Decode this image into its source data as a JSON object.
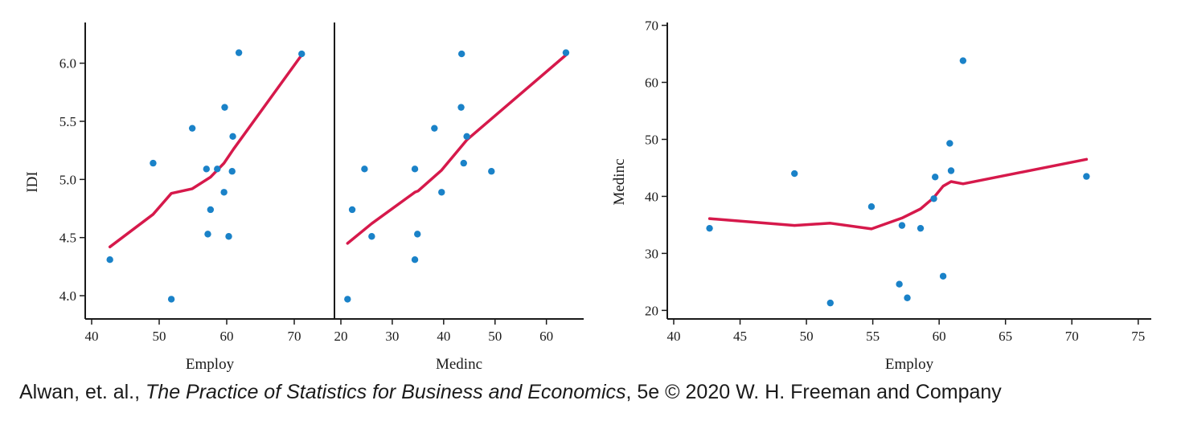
{
  "colors": {
    "point": "#1a82c8",
    "smooth_line": "#d6194b",
    "axis": "#1a1a1a"
  },
  "credit": {
    "prefix": "Alwan, et. al., ",
    "book_title": "The Practice of Statistics for Business and Economics",
    "suffix": ", 5e © 2020 W. H. Freeman and Company"
  },
  "chart_data": [
    {
      "type": "scatter",
      "panel": "left",
      "xlabel": "Employ",
      "ylabel": "IDI",
      "xlim": [
        40,
        75
      ],
      "ylim": [
        3.8,
        6.35
      ],
      "xticks": [
        40,
        50,
        60,
        70
      ],
      "yticks": [
        4.0,
        4.5,
        5.0,
        5.5,
        6.0
      ],
      "points": [
        {
          "x": 42.7,
          "y": 4.31
        },
        {
          "x": 49.1,
          "y": 5.14
        },
        {
          "x": 51.8,
          "y": 3.97
        },
        {
          "x": 54.9,
          "y": 5.44
        },
        {
          "x": 57.0,
          "y": 5.09
        },
        {
          "x": 57.2,
          "y": 4.53
        },
        {
          "x": 57.6,
          "y": 4.74
        },
        {
          "x": 58.6,
          "y": 5.09
        },
        {
          "x": 59.6,
          "y": 4.89
        },
        {
          "x": 59.7,
          "y": 5.62
        },
        {
          "x": 60.3,
          "y": 4.51
        },
        {
          "x": 60.8,
          "y": 5.07
        },
        {
          "x": 60.9,
          "y": 5.37
        },
        {
          "x": 61.8,
          "y": 6.09
        },
        {
          "x": 71.1,
          "y": 6.08
        }
      ],
      "smooth": [
        {
          "x": 42.7,
          "y": 4.42
        },
        {
          "x": 49.1,
          "y": 4.7
        },
        {
          "x": 51.8,
          "y": 4.88
        },
        {
          "x": 54.9,
          "y": 4.92
        },
        {
          "x": 57.6,
          "y": 5.02
        },
        {
          "x": 59.6,
          "y": 5.14
        },
        {
          "x": 61.0,
          "y": 5.26
        },
        {
          "x": 71.1,
          "y": 6.07
        }
      ]
    },
    {
      "type": "scatter",
      "panel": "middle",
      "xlabel": "Medinc",
      "ylabel": "",
      "xlim": [
        20,
        66
      ],
      "ylim": [
        3.8,
        6.35
      ],
      "xticks": [
        20,
        30,
        40,
        50,
        60
      ],
      "yticks": [],
      "points": [
        {
          "x": 21.3,
          "y": 3.97
        },
        {
          "x": 22.2,
          "y": 4.74
        },
        {
          "x": 24.6,
          "y": 5.09
        },
        {
          "x": 26.0,
          "y": 4.51
        },
        {
          "x": 34.4,
          "y": 5.09
        },
        {
          "x": 34.4,
          "y": 4.31
        },
        {
          "x": 34.9,
          "y": 4.53
        },
        {
          "x": 38.2,
          "y": 5.44
        },
        {
          "x": 39.6,
          "y": 4.89
        },
        {
          "x": 43.4,
          "y": 5.62
        },
        {
          "x": 43.5,
          "y": 6.08
        },
        {
          "x": 43.9,
          "y": 5.14
        },
        {
          "x": 44.5,
          "y": 5.37
        },
        {
          "x": 49.3,
          "y": 5.07
        },
        {
          "x": 63.8,
          "y": 6.09
        }
      ],
      "smooth": [
        {
          "x": 21.3,
          "y": 4.45
        },
        {
          "x": 26.0,
          "y": 4.62
        },
        {
          "x": 34.4,
          "y": 4.89
        },
        {
          "x": 35.0,
          "y": 4.9
        },
        {
          "x": 39.6,
          "y": 5.08
        },
        {
          "x": 44.5,
          "y": 5.34
        },
        {
          "x": 63.8,
          "y": 6.07
        }
      ]
    },
    {
      "type": "scatter",
      "panel": "right",
      "xlabel": "Employ",
      "ylabel": "Medinc",
      "xlim": [
        40,
        75.5
      ],
      "ylim": [
        18.5,
        70.5
      ],
      "xticks": [
        40,
        45,
        50,
        55,
        60,
        65,
        70,
        75
      ],
      "yticks": [
        20,
        30,
        40,
        50,
        60,
        70
      ],
      "points": [
        {
          "x": 42.7,
          "y": 34.4
        },
        {
          "x": 49.1,
          "y": 44.0
        },
        {
          "x": 51.8,
          "y": 21.3
        },
        {
          "x": 54.9,
          "y": 38.2
        },
        {
          "x": 57.0,
          "y": 24.6
        },
        {
          "x": 57.2,
          "y": 34.9
        },
        {
          "x": 57.6,
          "y": 22.2
        },
        {
          "x": 58.6,
          "y": 34.4
        },
        {
          "x": 59.6,
          "y": 39.6
        },
        {
          "x": 59.7,
          "y": 43.4
        },
        {
          "x": 60.3,
          "y": 26.0
        },
        {
          "x": 60.8,
          "y": 49.3
        },
        {
          "x": 60.9,
          "y": 44.5
        },
        {
          "x": 61.8,
          "y": 63.8
        },
        {
          "x": 71.1,
          "y": 43.5
        }
      ],
      "smooth": [
        {
          "x": 42.7,
          "y": 36.1
        },
        {
          "x": 49.1,
          "y": 34.9
        },
        {
          "x": 51.8,
          "y": 35.3
        },
        {
          "x": 54.9,
          "y": 34.3
        },
        {
          "x": 57.2,
          "y": 36.2
        },
        {
          "x": 58.6,
          "y": 37.8
        },
        {
          "x": 59.6,
          "y": 39.8
        },
        {
          "x": 60.3,
          "y": 41.8
        },
        {
          "x": 60.9,
          "y": 42.6
        },
        {
          "x": 61.8,
          "y": 42.2
        },
        {
          "x": 71.1,
          "y": 46.5
        }
      ]
    }
  ]
}
